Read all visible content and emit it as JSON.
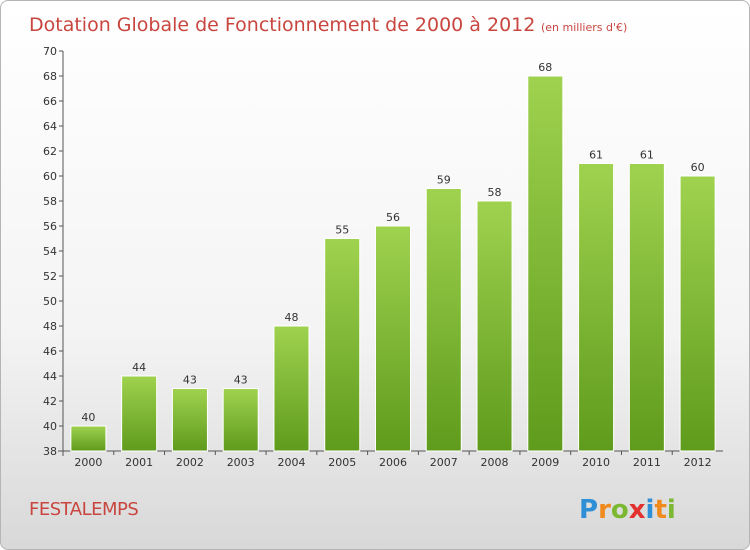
{
  "chart_data": {
    "type": "bar",
    "title": "Dotation Globale de Fonctionnement de 2000 à 2012",
    "subtitle": "(en milliers d'€)",
    "xlabel": "",
    "ylabel": "",
    "categories": [
      "2000",
      "2001",
      "2002",
      "2003",
      "2004",
      "2005",
      "2006",
      "2007",
      "2008",
      "2009",
      "2010",
      "2011",
      "2012"
    ],
    "values": [
      40,
      44,
      43,
      43,
      48,
      55,
      56,
      59,
      58,
      68,
      61,
      61,
      60
    ],
    "ylim": [
      38,
      70
    ],
    "yticks": [
      38,
      40,
      42,
      44,
      46,
      48,
      50,
      52,
      54,
      56,
      58,
      60,
      62,
      64,
      66,
      68,
      70
    ],
    "grid": false,
    "bar_color": "#7cb832"
  },
  "commune": "FESTALEMPS",
  "logo": {
    "letters": [
      "P",
      "r",
      "o",
      "x",
      "i",
      "t",
      "i"
    ],
    "colors": [
      "#2f8fd6",
      "#f08a1c",
      "#7cb832",
      "#e2312e",
      "#2f8fd6",
      "#f08a1c",
      "#7cb832"
    ]
  }
}
